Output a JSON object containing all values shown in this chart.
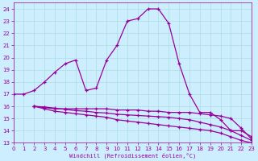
{
  "xlabel": "Windchill (Refroidissement éolien,°C)",
  "xlim": [
    0,
    23
  ],
  "ylim": [
    13,
    24.5
  ],
  "yticks": [
    13,
    14,
    15,
    16,
    17,
    18,
    19,
    20,
    21,
    22,
    23,
    24
  ],
  "xticks": [
    0,
    1,
    2,
    3,
    4,
    5,
    6,
    7,
    8,
    9,
    10,
    11,
    12,
    13,
    14,
    15,
    16,
    17,
    18,
    19,
    20,
    21,
    22,
    23
  ],
  "background_color": "#cceeff",
  "grid_color": "#aadddd",
  "line_color": "#990099",
  "line_width": 0.9,
  "marker": "+",
  "markersize": 3.5,
  "markeredgewidth": 0.9,
  "line1_x": [
    0,
    1,
    2,
    3,
    4,
    5,
    6,
    7,
    8,
    9,
    10,
    11,
    12,
    13,
    14,
    15,
    16,
    17,
    18,
    19,
    20,
    21,
    22,
    23
  ],
  "line1_y": [
    17.0,
    17.0,
    17.3,
    18.0,
    18.8,
    19.5,
    19.8,
    17.3,
    17.5,
    19.8,
    21.0,
    23.0,
    23.2,
    24.0,
    24.0,
    22.8,
    19.5,
    17.0,
    15.5,
    15.5,
    14.9,
    14.0,
    14.0,
    13.5
  ],
  "line2_x": [
    2,
    3,
    4,
    5,
    6,
    7,
    8,
    9,
    10,
    11,
    12,
    13,
    14,
    15,
    16,
    17,
    18,
    19,
    20,
    21,
    22,
    23
  ],
  "line2_y": [
    16.0,
    15.9,
    15.8,
    15.8,
    15.8,
    15.8,
    15.8,
    15.8,
    15.7,
    15.7,
    15.7,
    15.6,
    15.6,
    15.5,
    15.5,
    15.5,
    15.4,
    15.3,
    15.2,
    15.0,
    14.2,
    13.3
  ],
  "line3_x": [
    2,
    3,
    4,
    5,
    6,
    7,
    8,
    9,
    10,
    11,
    12,
    13,
    14,
    15,
    16,
    17,
    18,
    19,
    20,
    21,
    22,
    23
  ],
  "line3_y": [
    16.0,
    15.8,
    15.6,
    15.5,
    15.4,
    15.3,
    15.2,
    15.1,
    14.9,
    14.8,
    14.7,
    14.6,
    14.5,
    14.4,
    14.3,
    14.2,
    14.1,
    14.0,
    13.8,
    13.5,
    13.2,
    13.0
  ],
  "line4_x": [
    2,
    3,
    4,
    5,
    6,
    7,
    8,
    9,
    10,
    11,
    12,
    13,
    14,
    15,
    16,
    17,
    18,
    19,
    20,
    21,
    22,
    23
  ],
  "line4_y": [
    16.0,
    15.95,
    15.85,
    15.75,
    15.65,
    15.6,
    15.5,
    15.45,
    15.35,
    15.3,
    15.25,
    15.2,
    15.15,
    15.1,
    15.0,
    14.9,
    14.7,
    14.5,
    14.3,
    14.0,
    13.6,
    13.2
  ]
}
